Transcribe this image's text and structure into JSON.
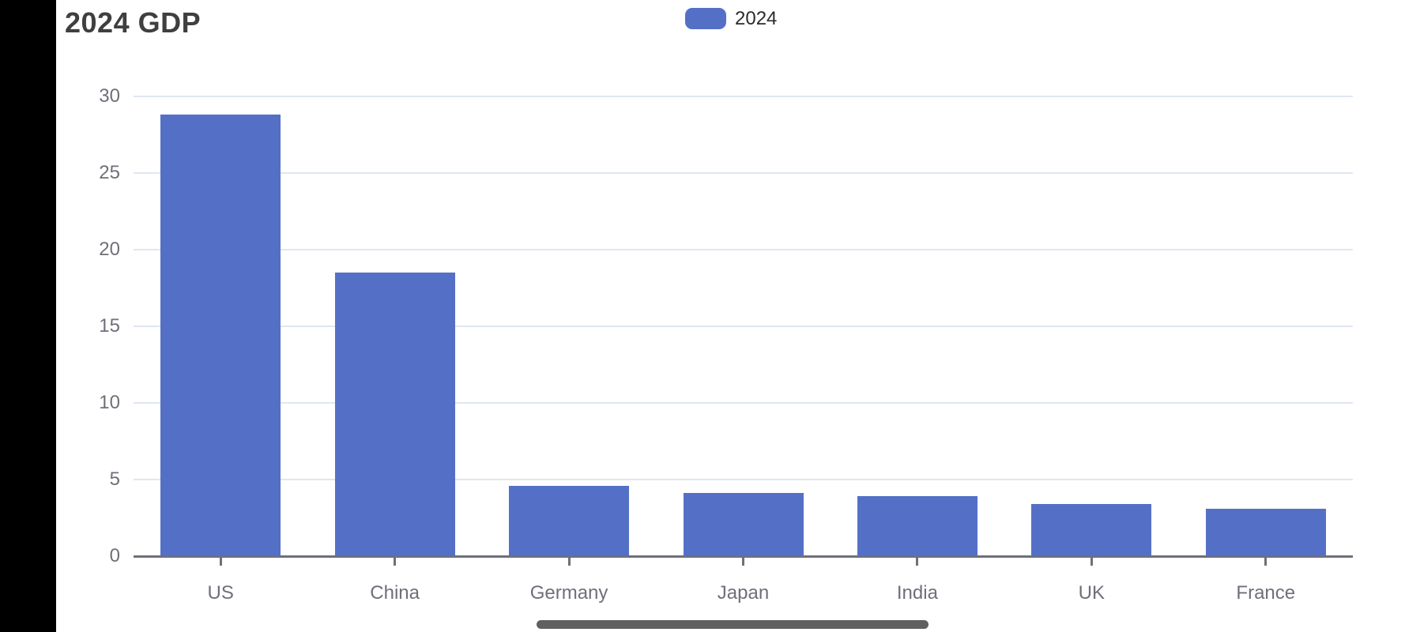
{
  "title": "2024 GDP",
  "legend": {
    "label": "2024",
    "swatch_color": "#5470C6"
  },
  "chart_data": {
    "type": "bar",
    "title": "2024 GDP",
    "categories": [
      "US",
      "China",
      "Germany",
      "Japan",
      "India",
      "UK",
      "France"
    ],
    "series": [
      {
        "name": "2024",
        "values": [
          28.8,
          18.5,
          4.6,
          4.1,
          3.9,
          3.4,
          3.1
        ]
      }
    ],
    "xlabel": "",
    "ylabel": "",
    "ylim": [
      0,
      30
    ],
    "yticks": [
      0,
      5,
      10,
      15,
      20,
      25,
      30
    ],
    "grid": true,
    "legend_position": "top-center",
    "bar_color": "#5470C6",
    "gridline_color": "#E0E6F1",
    "axis_color": "#6E7079"
  },
  "scrollbar": {
    "color": "#606060"
  }
}
